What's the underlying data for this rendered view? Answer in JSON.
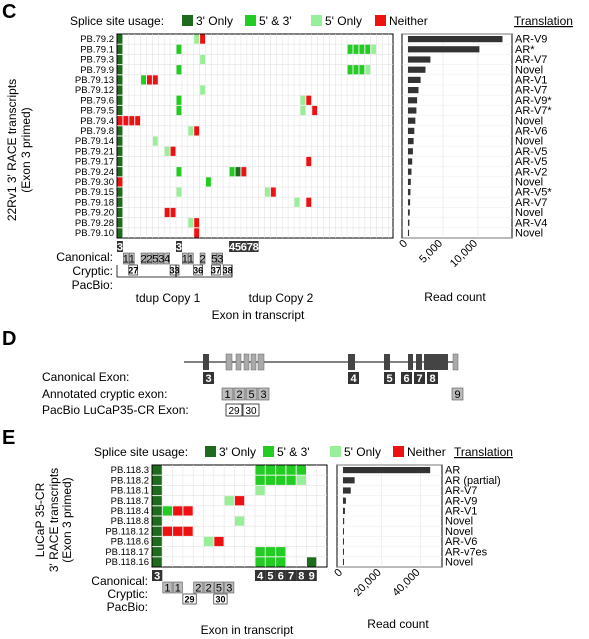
{
  "panel_c": {
    "letter": "C",
    "legend_title": "Splice site usage:",
    "legend": [
      {
        "label": "3' Only",
        "color": "#1e6b1e"
      },
      {
        "label": "5' & 3'",
        "color": "#22cc22"
      },
      {
        "label": "5' Only",
        "color": "#99ee99"
      },
      {
        "label": "Neither",
        "color": "#ee1111"
      }
    ],
    "translation_header": "Translation",
    "ylabel_line1": "22Rv1 3' RACE transcripts",
    "ylabel_line2": "(Exon 3 primed)",
    "xlabel": "Exon in transcript",
    "bar_xlabel": "Read count",
    "bar_ticks": [
      "0",
      "5,000",
      "10,000"
    ],
    "track_labels": [
      "Canonical:",
      "Cryptic:",
      "PacBio:"
    ],
    "tdup_labels": [
      "tdup Copy 1",
      "tdup Copy 2"
    ],
    "rows": [
      {
        "id": "PB.79.2",
        "translation": "AR-V9",
        "reads": 13500
      },
      {
        "id": "PB.79.1",
        "translation": "AR*",
        "reads": 10200
      },
      {
        "id": "PB.79.3",
        "translation": "AR-V7",
        "reads": 3200
      },
      {
        "id": "PB.79.9",
        "translation": "Novel",
        "reads": 2500
      },
      {
        "id": "PB.79.13",
        "translation": "AR-V1",
        "reads": 1800
      },
      {
        "id": "PB.79.12",
        "translation": "AR-V7",
        "reads": 1500
      },
      {
        "id": "PB.79.6",
        "translation": "AR-V9*",
        "reads": 1300
      },
      {
        "id": "PB.79.5",
        "translation": "AR-V7*",
        "reads": 1200
      },
      {
        "id": "PB.79.4",
        "translation": "Novel",
        "reads": 1050
      },
      {
        "id": "PB.79.8",
        "translation": "AR-V6",
        "reads": 900
      },
      {
        "id": "PB.79.14",
        "translation": "Novel",
        "reads": 800
      },
      {
        "id": "PB.79.21",
        "translation": "AR-V5",
        "reads": 700
      },
      {
        "id": "PB.79.17",
        "translation": "AR-V5",
        "reads": 600
      },
      {
        "id": "PB.79.24",
        "translation": "AR-V2",
        "reads": 500
      },
      {
        "id": "PB.79.30",
        "translation": "Novel",
        "reads": 400
      },
      {
        "id": "PB.79.15",
        "translation": "AR-V5*",
        "reads": 350
      },
      {
        "id": "PB.79.18",
        "translation": "AR-V7",
        "reads": 300
      },
      {
        "id": "PB.79.20",
        "translation": "Novel",
        "reads": 250
      },
      {
        "id": "PB.79.28",
        "translation": "AR-V4",
        "reads": 200
      },
      {
        "id": "PB.79.10",
        "translation": "Novel",
        "reads": 150
      }
    ],
    "canonical": [
      {
        "label": "3",
        "col": 0
      },
      {
        "label": "3",
        "col": 10
      },
      {
        "label": "4",
        "col": 19
      },
      {
        "label": "5",
        "col": 20
      },
      {
        "label": "6",
        "col": 21
      },
      {
        "label": "7",
        "col": 22
      },
      {
        "label": "8",
        "col": 23
      }
    ],
    "cryptic": [
      {
        "label": "1",
        "col": 1
      },
      {
        "label": "1",
        "col": 2
      },
      {
        "label": "2",
        "col": 4
      },
      {
        "label": "2",
        "col": 5
      },
      {
        "label": "5",
        "col": 6
      },
      {
        "label": "3",
        "col": 7
      },
      {
        "label": "4",
        "col": 8
      },
      {
        "label": "1",
        "col": 11
      },
      {
        "label": "1",
        "col": 12
      },
      {
        "label": "2",
        "col": 14
      },
      {
        "label": "5",
        "col": 16
      },
      {
        "label": "3",
        "col": 17
      }
    ],
    "pacbio": [
      {
        "label": "27",
        "col": 2
      },
      {
        "label": "33",
        "col": 9
      },
      {
        "label": "36",
        "col": 13
      },
      {
        "label": "37",
        "col": 16
      },
      {
        "label": "38",
        "col": 18
      }
    ]
  },
  "panel_d": {
    "letter": "D",
    "labels": [
      "Canonical Exon:",
      "Annotated cryptic exon:",
      "PacBio LuCaP35-CR Exon:"
    ],
    "canonical": [
      "3",
      "4",
      "5",
      "6",
      "7",
      "8"
    ],
    "cryptic": [
      "1",
      "2",
      "5",
      "3",
      "9"
    ],
    "pacbio": [
      "29",
      "30"
    ]
  },
  "panel_e": {
    "letter": "E",
    "legend_title": "Splice site usage:",
    "translation_header": "Translation",
    "ylabel_line1": "LuCaP 35-CR",
    "ylabel_line2": "3' RACE transcripts",
    "ylabel_line3": "(Exon 3 primed)",
    "xlabel": "Exon in transcript",
    "bar_xlabel": "Read count",
    "bar_ticks": [
      "0",
      "20,000",
      "40,000"
    ],
    "track_labels": [
      "Canonical:",
      "Cryptic:",
      "PacBio:"
    ],
    "rows": [
      {
        "id": "PB.118.3",
        "translation": "AR",
        "reads": 45000
      },
      {
        "id": "PB.118.2",
        "translation": "AR (partial)",
        "reads": 6000
      },
      {
        "id": "PB.118.1",
        "translation": "AR-V7",
        "reads": 4000
      },
      {
        "id": "PB.118.7",
        "translation": "AR-V9",
        "reads": 1500
      },
      {
        "id": "PB.118.4",
        "translation": "AR-V1",
        "reads": 1000
      },
      {
        "id": "PB.118.8",
        "translation": "Novel",
        "reads": 600
      },
      {
        "id": "PB.118.12",
        "translation": "Novel",
        "reads": 400
      },
      {
        "id": "PB.118.6",
        "translation": "AR-V6",
        "reads": 300
      },
      {
        "id": "PB.118.17",
        "translation": "AR-v7es",
        "reads": 200
      },
      {
        "id": "PB.118.16",
        "translation": "Novel",
        "reads": 150
      }
    ],
    "canonical": [
      {
        "label": "3",
        "col": 0
      },
      {
        "label": "4",
        "col": 10
      },
      {
        "label": "5",
        "col": 11
      },
      {
        "label": "6",
        "col": 12
      },
      {
        "label": "7",
        "col": 13
      },
      {
        "label": "8",
        "col": 14
      },
      {
        "label": "9",
        "col": 15
      }
    ],
    "cryptic": [
      {
        "label": "1",
        "col": 1
      },
      {
        "label": "1",
        "col": 2
      },
      {
        "label": "2",
        "col": 4
      },
      {
        "label": "2",
        "col": 5
      },
      {
        "label": "5",
        "col": 6
      },
      {
        "label": "3",
        "col": 7
      }
    ],
    "pacbio": [
      {
        "label": "29",
        "col": 3
      },
      {
        "label": "30",
        "col": 6
      }
    ]
  }
}
